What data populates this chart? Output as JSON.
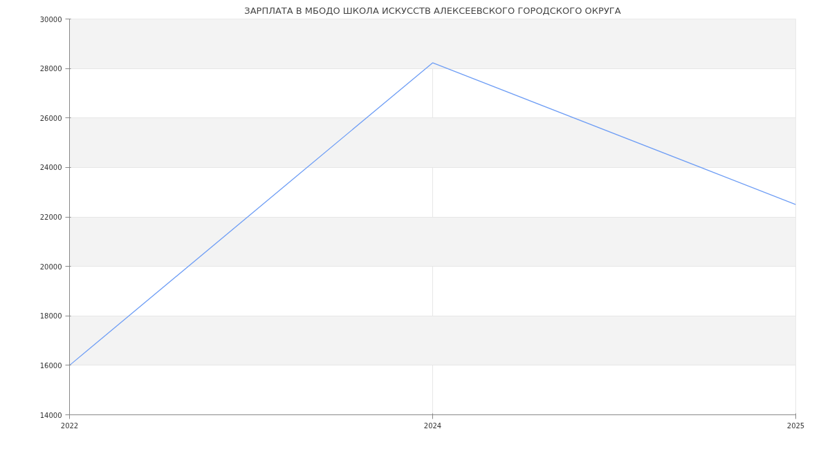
{
  "chart_data": {
    "type": "line",
    "title": "ЗАРПЛАТА В МБОДО ШКОЛА ИСКУССТВ АЛЕКСЕЕВСКОГО ГОРОДСКОГО ОКРУГА",
    "categories": [
      "2022",
      "2024",
      "2025"
    ],
    "series": [
      {
        "color": "#6f9ef5",
        "values": [
          16000,
          28230,
          22500
        ]
      }
    ],
    "ylim": [
      14000,
      30000
    ],
    "yticks": [
      14000,
      16000,
      18000,
      20000,
      22000,
      24000,
      26000,
      28000,
      30000
    ],
    "grid": true,
    "marker": "none",
    "line_style": "solid"
  }
}
